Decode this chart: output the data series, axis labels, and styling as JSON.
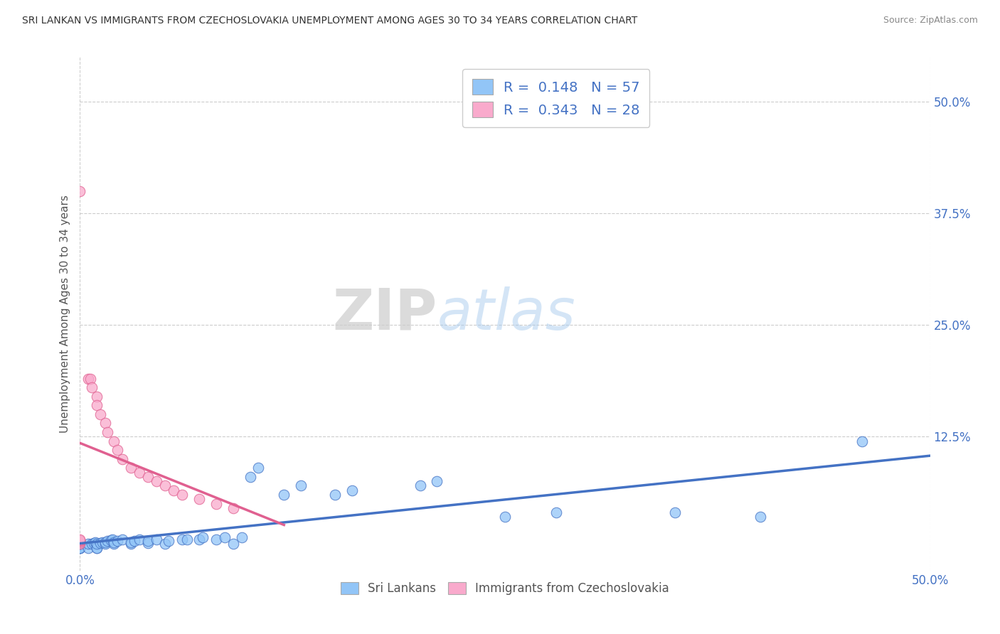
{
  "title": "SRI LANKAN VS IMMIGRANTS FROM CZECHOSLOVAKIA UNEMPLOYMENT AMONG AGES 30 TO 34 YEARS CORRELATION CHART",
  "source": "Source: ZipAtlas.com",
  "ylabel": "Unemployment Among Ages 30 to 34 years",
  "xlim": [
    0.0,
    0.5
  ],
  "ylim": [
    -0.025,
    0.55
  ],
  "xticks": [
    0.0,
    0.5
  ],
  "xticklabels": [
    "0.0%",
    "50.0%"
  ],
  "ytick_vals": [
    0.125,
    0.25,
    0.375,
    0.5
  ],
  "yticklabels_right": [
    "12.5%",
    "25.0%",
    "37.5%",
    "50.0%"
  ],
  "sri_lankans_R": 0.148,
  "sri_lankans_N": 57,
  "czechoslovakia_R": 0.343,
  "czechoslovakia_N": 28,
  "sri_lankans_color": "#92C5F7",
  "czechoslovakia_color": "#F9AACC",
  "sri_lankans_line_color": "#4472C4",
  "czechoslovakia_line_color": "#E06090",
  "watermark_zip": "ZIP",
  "watermark_atlas": "atlas",
  "background_color": "#ffffff",
  "grid_color": "#cccccc",
  "tick_label_color": "#4472C4",
  "sri_lankans_x": [
    0.0,
    0.0,
    0.0,
    0.0,
    0.0,
    0.0,
    0.0,
    0.0,
    0.005,
    0.005,
    0.007,
    0.008,
    0.009,
    0.01,
    0.01,
    0.01,
    0.012,
    0.013,
    0.015,
    0.015,
    0.016,
    0.018,
    0.019,
    0.02,
    0.02,
    0.022,
    0.025,
    0.03,
    0.03,
    0.032,
    0.035,
    0.04,
    0.04,
    0.045,
    0.05,
    0.052,
    0.06,
    0.063,
    0.07,
    0.072,
    0.08,
    0.085,
    0.09,
    0.095,
    0.1,
    0.105,
    0.12,
    0.13,
    0.15,
    0.16,
    0.2,
    0.21,
    0.25,
    0.28,
    0.35,
    0.4,
    0.46
  ],
  "sri_lankans_y": [
    0.0,
    0.0,
    0.0,
    0.0,
    0.005,
    0.005,
    0.007,
    0.008,
    0.0,
    0.005,
    0.005,
    0.006,
    0.007,
    0.0,
    0.0,
    0.005,
    0.006,
    0.007,
    0.005,
    0.007,
    0.008,
    0.009,
    0.01,
    0.005,
    0.007,
    0.008,
    0.01,
    0.005,
    0.007,
    0.008,
    0.01,
    0.006,
    0.008,
    0.01,
    0.005,
    0.008,
    0.01,
    0.01,
    0.01,
    0.012,
    0.01,
    0.012,
    0.005,
    0.012,
    0.08,
    0.09,
    0.06,
    0.07,
    0.06,
    0.065,
    0.07,
    0.075,
    0.035,
    0.04,
    0.04,
    0.035,
    0.12
  ],
  "czechoslovakia_x": [
    0.0,
    0.0,
    0.0,
    0.0,
    0.0,
    0.0,
    0.0,
    0.005,
    0.006,
    0.007,
    0.01,
    0.01,
    0.012,
    0.015,
    0.016,
    0.02,
    0.022,
    0.025,
    0.03,
    0.035,
    0.04,
    0.045,
    0.05,
    0.055,
    0.06,
    0.07,
    0.08,
    0.09
  ],
  "czechoslovakia_y": [
    0.4,
    0.005,
    0.007,
    0.008,
    0.008,
    0.009,
    0.01,
    0.19,
    0.19,
    0.18,
    0.17,
    0.16,
    0.15,
    0.14,
    0.13,
    0.12,
    0.11,
    0.1,
    0.09,
    0.085,
    0.08,
    0.075,
    0.07,
    0.065,
    0.06,
    0.055,
    0.05,
    0.045
  ]
}
